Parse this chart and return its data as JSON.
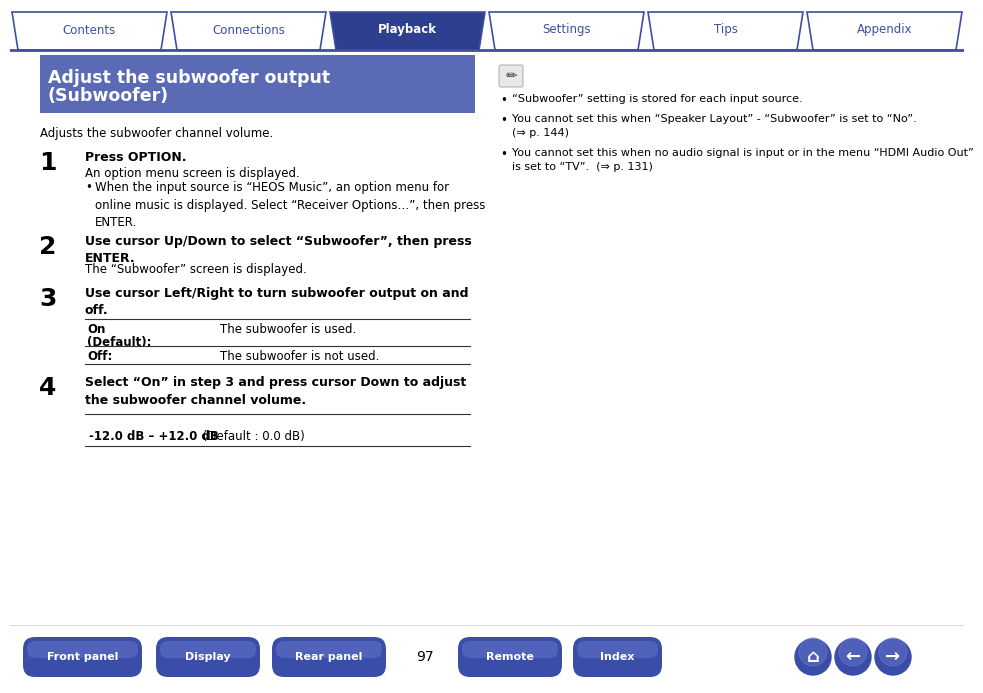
{
  "bg_color": "#ffffff",
  "header_tabs": [
    "Contents",
    "Connections",
    "Playback",
    "Settings",
    "Tips",
    "Appendix"
  ],
  "active_tab": "Playback",
  "tab_bg_active": "#2e3f8f",
  "tab_bg_inactive": "#ffffff",
  "tab_border_color": "#3d4fa0",
  "tab_text_active": "#ffffff",
  "tab_text_inactive": "#3d4fa0",
  "title_bg": "#5a6ab5",
  "title_line1": "Adjust the subwoofer output",
  "title_line2": "(Subwoofer)",
  "title_text_color": "#ffffff",
  "subtitle": "Adjusts the subwoofer channel volume.",
  "step1_bold": "Press OPTION.",
  "step1_body1": "An option menu screen is displayed.",
  "step1_bullet": "When the input source is “HEOS Music”, an option menu for\nonline music is displayed. Select “Receiver Options…”, then press\nENTER.",
  "step2_bold": "Use cursor Up/Down to select “Subwoofer”, then press\nENTER.",
  "step2_body": "The “Subwoofer” screen is displayed.",
  "step3_bold": "Use cursor Left/Right to turn subwoofer output on and\noff.",
  "table_row1_col1": "On\n(Default):",
  "table_row1_col2": "The subwoofer is used.",
  "table_row2_col1": "Off:",
  "table_row2_col2": "The subwoofer is not used.",
  "step4_bold": "Select “On” in step 3 and press cursor Down to adjust\nthe subwoofer channel volume.",
  "range_bold": "-12.0 dB – +12.0 dB",
  "range_normal": " (Default : 0.0 dB)",
  "note_icon": "✏",
  "notes": [
    "“Subwoofer” setting is stored for each input source.",
    "You cannot set this when “Speaker Layout” - “Subwoofer” is set to “No”.\n(⇒ p. 144)",
    "You cannot set this when no audio signal is input or in the menu “HDMI Audio Out”\nis set to “TV”.  (⇒ p. 131)"
  ],
  "footer_buttons": [
    "Front panel",
    "Display",
    "Rear panel",
    "Remote",
    "Index"
  ],
  "page_num": "97",
  "button_bg": "#3d4fa0",
  "button_text_color": "#ffffff"
}
